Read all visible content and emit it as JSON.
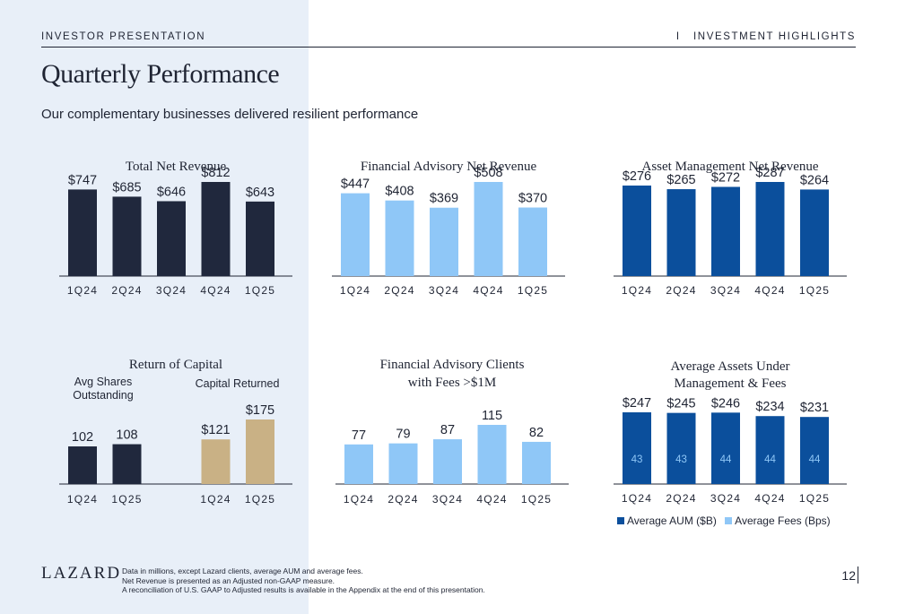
{
  "header": {
    "left": "INVESTOR PRESENTATION",
    "right": "I   INVESTMENT HIGHLIGHTS"
  },
  "title": "Quarterly Performance",
  "subtitle": "Our complementary businesses delivered resilient performance",
  "colors": {
    "navy": "#20283d",
    "light_blue": "#8fc7f7",
    "royal_blue": "#0b4f9c",
    "tan": "#c9b185",
    "panel": "#e8eff8"
  },
  "chart_data": [
    {
      "id": "total",
      "type": "bar",
      "title": "Total Net Revenue",
      "categories": [
        "1Q24",
        "2Q24",
        "3Q24",
        "4Q24",
        "1Q25"
      ],
      "values": [
        747,
        685,
        646,
        812,
        643
      ],
      "labels": [
        "$747",
        "$685",
        "$646",
        "$812",
        "$643"
      ],
      "color": "#20283d",
      "ylim": [
        0,
        900
      ]
    },
    {
      "id": "fa",
      "type": "bar",
      "title": "Financial Advisory Net Revenue",
      "categories": [
        "1Q24",
        "2Q24",
        "3Q24",
        "4Q24",
        "1Q25"
      ],
      "values": [
        447,
        408,
        369,
        508,
        370
      ],
      "labels": [
        "$447",
        "$408",
        "$369",
        "$508",
        "$370"
      ],
      "color": "#8fc7f7",
      "ylim": [
        0,
        560
      ]
    },
    {
      "id": "am",
      "type": "bar",
      "title": "Asset Management Net Revenue",
      "categories": [
        "1Q24",
        "2Q24",
        "3Q24",
        "4Q24",
        "1Q25"
      ],
      "values": [
        276,
        265,
        272,
        287,
        264
      ],
      "labels": [
        "$276",
        "$265",
        "$272",
        "$287",
        "$264"
      ],
      "color": "#0b4f9c",
      "ylim": [
        0,
        320
      ]
    },
    {
      "id": "roc",
      "type": "bar",
      "title": "Return of Capital",
      "groups": [
        {
          "name": "Avg Shares Outstanding",
          "categories": [
            "1Q24",
            "1Q25"
          ],
          "values": [
            102,
            108
          ],
          "labels": [
            "102",
            "108"
          ],
          "color": "#20283d"
        },
        {
          "name": "Capital Returned",
          "categories": [
            "1Q24",
            "1Q25"
          ],
          "values": [
            121,
            175
          ],
          "labels": [
            "$121",
            "$175"
          ],
          "color": "#c9b185"
        }
      ],
      "ylim": [
        0,
        400
      ]
    },
    {
      "id": "clients",
      "type": "bar",
      "title_lines": [
        "Financial Advisory Clients",
        "with Fees >$1M"
      ],
      "categories": [
        "1Q24",
        "2Q24",
        "3Q24",
        "4Q24",
        "1Q25"
      ],
      "values": [
        77,
        79,
        87,
        115,
        82
      ],
      "labels": [
        "77",
        "79",
        "87",
        "115",
        "82"
      ],
      "color": "#8fc7f7",
      "ylim": [
        0,
        150
      ]
    },
    {
      "id": "aum",
      "type": "bar",
      "title_lines": [
        "Average Assets Under",
        "Management & Fees"
      ],
      "categories": [
        "1Q24",
        "2Q24",
        "3Q24",
        "4Q24",
        "1Q25"
      ],
      "series": [
        {
          "name": "Average AUM ($B)",
          "values": [
            247,
            245,
            246,
            234,
            231
          ],
          "labels": [
            "$247",
            "$245",
            "$246",
            "$234",
            "$231"
          ],
          "color": "#0b4f9c"
        },
        {
          "name": "Average Fees (Bps)",
          "values": [
            43,
            43,
            44,
            44,
            44
          ],
          "labels": [
            "43",
            "43",
            "44",
            "44",
            "44"
          ],
          "color": "#8fc7f7"
        }
      ],
      "ylim": [
        0,
        255
      ]
    }
  ],
  "legend": {
    "items": [
      {
        "label": "Average AUM ($B)",
        "color": "#0b4f9c"
      },
      {
        "label": "Average Fees (Bps)",
        "color": "#8fc7f7"
      }
    ]
  },
  "footer": {
    "logo": "LAZARD",
    "notes": [
      "Data in millions, except Lazard clients, average AUM and average fees.",
      "Net Revenue is presented as an Adjusted non-GAAP measure.",
      "A reconciliation of U.S. GAAP to Adjusted results is available in the Appendix at the end of this presentation."
    ],
    "page_number": "12"
  }
}
